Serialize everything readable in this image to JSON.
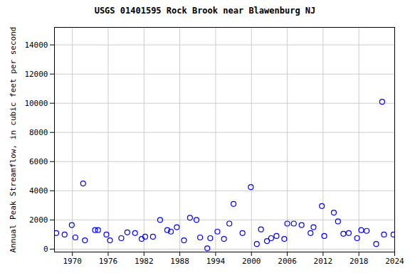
{
  "chart_data": {
    "type": "scatter",
    "title": "USGS 01401595 Rock Brook near Blawenburg NJ",
    "y_label": "Annual Peak Streamflow, in cubic feet per second",
    "x": [
      1967.3,
      1968.7,
      1969.9,
      1970.5,
      1971.8,
      1972.1,
      1973.8,
      1974.3,
      1975.7,
      1976.3,
      1978.2,
      1979.2,
      1980.5,
      1981.6,
      1982.2,
      1983.5,
      1984.7,
      1985.9,
      1986.5,
      1987.5,
      1988.7,
      1989.7,
      1990.8,
      1991.4,
      1992.6,
      1993.1,
      1994.3,
      1995.4,
      1996.3,
      1997.0,
      1998.5,
      1999.9,
      2000.9,
      2001.6,
      2002.6,
      2003.3,
      2004.2,
      2005.5,
      2006.0,
      2007.1,
      2008.4,
      2009.9,
      2010.4,
      2011.8,
      2012.2,
      2013.8,
      2014.5,
      2015.4,
      2016.3,
      2017.7,
      2018.4,
      2019.3,
      2020.9,
      2021.9,
      2022.2,
      2023.8
    ],
    "values": [
      1100,
      1000,
      1650,
      800,
      4500,
      600,
      1300,
      1300,
      1000,
      600,
      750,
      1150,
      1100,
      700,
      850,
      850,
      2000,
      1300,
      1200,
      1500,
      600,
      2150,
      2000,
      800,
      50,
      750,
      1200,
      700,
      1750,
      3100,
      1100,
      4250,
      350,
      1350,
      550,
      750,
      900,
      700,
      1750,
      1750,
      1650,
      1100,
      1500,
      2950,
      900,
      2500,
      1900,
      1050,
      1100,
      750,
      1300,
      1250,
      350,
      10100,
      1000,
      1000
    ],
    "color": "#0000ff",
    "marker": "open_circle",
    "xlim": [
      1967,
      2024
    ],
    "xticks": [
      1970,
      1976,
      1982,
      1988,
      1994,
      2000,
      2006,
      2012,
      2018,
      2024
    ],
    "ylim": [
      -200,
      15200
    ],
    "yticks": [
      0,
      2000,
      4000,
      6000,
      8000,
      10000,
      12000,
      14000
    ],
    "grid": true
  }
}
